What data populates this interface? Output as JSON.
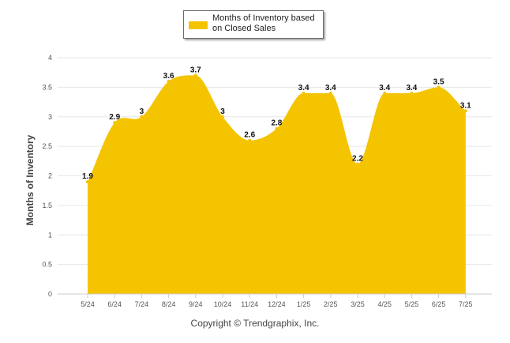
{
  "legend": {
    "label": "Months of Inventory based on Closed Sales",
    "color": "#F5C400"
  },
  "footer": {
    "copyright": "Copyright © Trendgraphix, Inc."
  },
  "chart_data": {
    "type": "area",
    "title": "",
    "xlabel": "",
    "ylabel": "Months of Inventory",
    "categories": [
      "5/24",
      "6/24",
      "7/24",
      "8/24",
      "9/24",
      "10/24",
      "11/24",
      "12/24",
      "1/25",
      "2/25",
      "3/25",
      "4/25",
      "5/25",
      "6/25",
      "7/25"
    ],
    "series": [
      {
        "name": "Months of Inventory based on Closed Sales",
        "values": [
          1.9,
          2.9,
          3,
          3.6,
          3.7,
          3,
          2.6,
          2.8,
          3.4,
          3.4,
          2.2,
          3.4,
          3.4,
          3.5,
          3.1
        ]
      }
    ],
    "y_ticks": [
      "0",
      "0.5",
      "1",
      "1.5",
      "2",
      "2.5",
      "3",
      "3.5",
      "4"
    ],
    "ylim": [
      0,
      4
    ],
    "grid": true,
    "legend_position": "top-center",
    "colors": {
      "fill": "#F5C400",
      "grid": "#e6e6e6",
      "label": "#111111"
    }
  }
}
